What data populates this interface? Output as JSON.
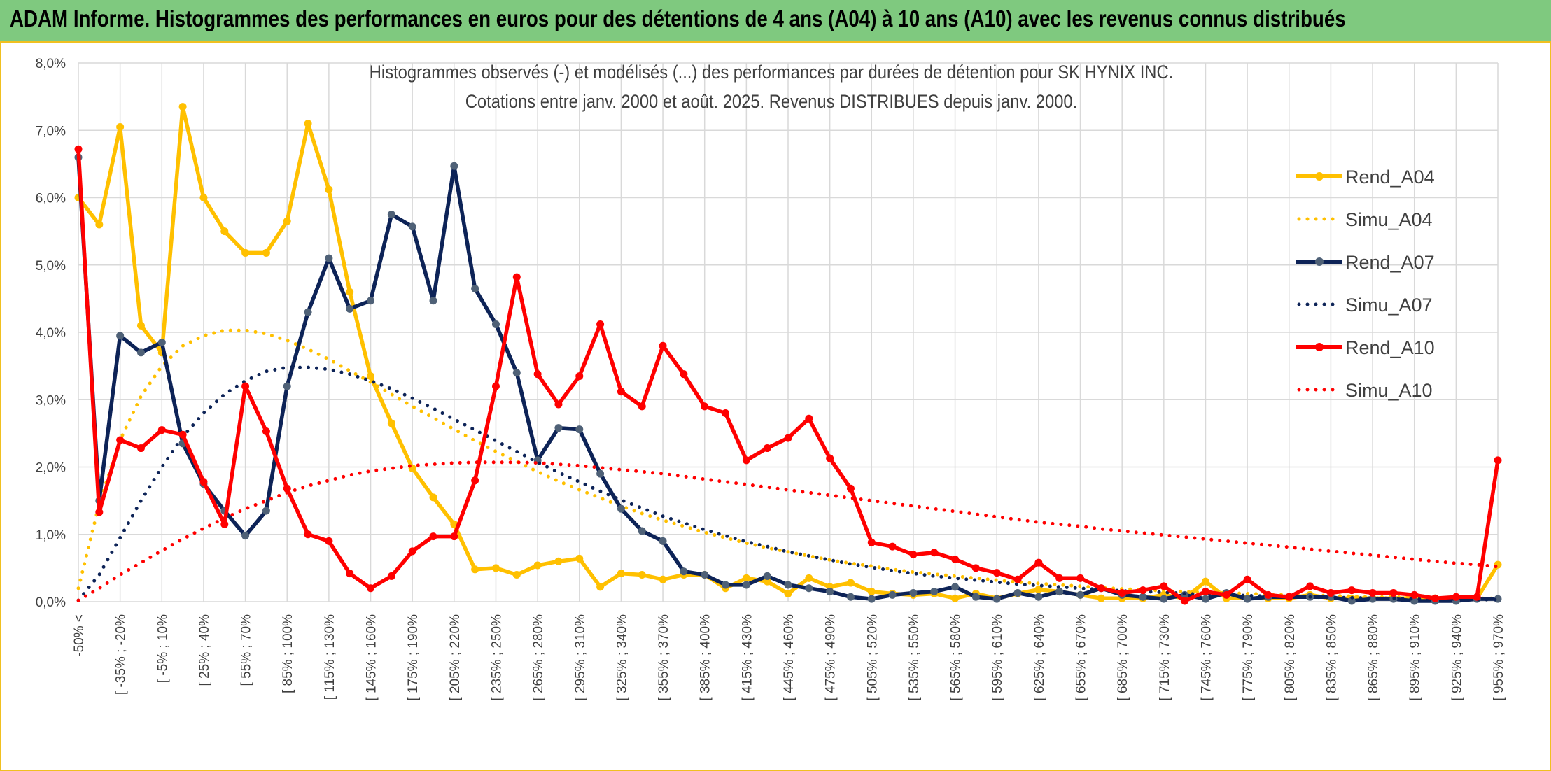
{
  "banner": {
    "title": "ADAM Informe. Histogrammes des performances en euros pour des détentions de 4 ans (A04) à 10 ans (A10) avec les revenus connus distribués"
  },
  "colors": {
    "banner_bg": "#7fc97f",
    "banner_border": "#f0c020",
    "A04": "#ffc000",
    "A07": "#0d2357",
    "A10": "#ff0000",
    "grid": "#d9d9d9"
  },
  "chart_data": {
    "type": "line",
    "title": "Histogrammes observés (-) et modélisés (...) des performances par durées de détention pour SK HYNIX INC.",
    "subtitle": "Cotations entre janv. 2000 et août. 2025. Revenus DISTRIBUES depuis janv. 2000.",
    "xlabel": "",
    "ylabel": "",
    "ylim": [
      0,
      8
    ],
    "y_unit": "%",
    "y_ticks": [
      "0,0%",
      "1,0%",
      "2,0%",
      "3,0%",
      "4,0%",
      "5,0%",
      "6,0%",
      "7,0%",
      "8,0%"
    ],
    "grid": true,
    "legend_position": "top-right",
    "x_tick_labels": [
      "-50% <",
      "[ -35% ; -20%",
      "[ -5% ; 10%",
      "[ 25% ; 40%",
      "[ 55% ; 70%",
      "[ 85% ; 100%",
      "[ 115% ; 130%",
      "[ 145% ; 160%",
      "[ 175% ; 190%",
      "[ 205% ; 220%",
      "[ 235% ; 250%",
      "[ 265% ; 280%",
      "[ 295% ; 310%",
      "[ 325% ; 340%",
      "[ 355% ; 370%",
      "[ 385% ; 400%",
      "[ 415% ; 430%",
      "[ 445% ; 460%",
      "[ 475% ; 490%",
      "[ 505% ; 520%",
      "[ 535% ; 550%",
      "[ 565% ; 580%",
      "[ 595% ; 610%",
      "[ 625% ; 640%",
      "[ 655% ; 670%",
      "[ 685% ; 700%",
      "[ 715% ; 730%",
      "[ 745% ; 760%",
      "[ 775% ; 790%",
      "[ 805% ; 820%",
      "[ 835% ; 850%",
      "[ 865% ; 880%",
      "[ 895% ; 910%",
      "[ 925% ; 940%",
      "[ 955% ; 970%"
    ],
    "n_categories": 69,
    "series": [
      {
        "name": "Rend_A04",
        "style": "solid",
        "color": "#ffc000",
        "values": [
          6.0,
          5.6,
          7.05,
          4.1,
          3.7,
          7.35,
          6.0,
          5.5,
          5.18,
          5.18,
          5.65,
          7.1,
          6.12,
          4.6,
          3.35,
          2.65,
          1.98,
          1.55,
          1.15,
          0.48,
          0.5,
          0.4,
          0.54,
          0.6,
          0.64,
          0.22,
          0.42,
          0.4,
          0.33,
          0.4,
          0.4,
          0.2,
          0.35,
          0.3,
          0.12,
          0.35,
          0.22,
          0.28,
          0.15,
          0.12,
          0.1,
          0.12,
          0.05,
          0.12,
          0.05,
          0.12,
          0.18,
          0.15,
          0.1,
          0.05,
          0.05,
          0.05,
          0.1,
          0.05,
          0.3,
          0.05,
          0.05,
          0.05,
          0.05,
          0.1,
          0.05,
          0.05,
          0.05,
          0.05,
          0.05,
          0.05,
          0.05,
          0.05,
          0.55
        ]
      },
      {
        "name": "Simu_A04",
        "style": "dotted",
        "color": "#ffc000",
        "values": [
          0.2,
          1.45,
          2.4,
          3.05,
          3.5,
          3.8,
          3.95,
          4.03,
          4.03,
          3.98,
          3.88,
          3.75,
          3.6,
          3.43,
          3.26,
          3.08,
          2.9,
          2.73,
          2.56,
          2.39,
          2.23,
          2.08,
          1.93,
          1.79,
          1.66,
          1.54,
          1.42,
          1.31,
          1.21,
          1.12,
          1.03,
          0.95,
          0.87,
          0.8,
          0.74,
          0.68,
          0.62,
          0.57,
          0.53,
          0.48,
          0.44,
          0.41,
          0.38,
          0.35,
          0.32,
          0.29,
          0.27,
          0.25,
          0.23,
          0.21,
          0.19,
          0.18,
          0.16,
          0.15,
          0.14,
          0.13,
          0.12,
          0.11,
          0.1,
          0.09,
          0.09,
          0.08,
          0.07,
          0.07,
          0.06,
          0.06,
          0.05,
          0.05,
          0.05
        ]
      },
      {
        "name": "Rend_A07",
        "style": "solid",
        "color": "#0d2357",
        "values": [
          6.6,
          1.5,
          3.95,
          3.7,
          3.85,
          2.35,
          1.75,
          1.35,
          0.98,
          1.35,
          3.2,
          4.3,
          5.1,
          4.35,
          4.47,
          5.75,
          5.57,
          4.47,
          6.47,
          4.65,
          4.12,
          3.4,
          2.1,
          2.58,
          2.56,
          1.9,
          1.38,
          1.05,
          0.9,
          0.45,
          0.4,
          0.25,
          0.25,
          0.38,
          0.25,
          0.2,
          0.15,
          0.07,
          0.04,
          0.1,
          0.13,
          0.15,
          0.22,
          0.07,
          0.04,
          0.13,
          0.07,
          0.15,
          0.1,
          0.2,
          0.1,
          0.07,
          0.04,
          0.1,
          0.04,
          0.13,
          0.04,
          0.07,
          0.07,
          0.07,
          0.07,
          0.01,
          0.04,
          0.04,
          0.01,
          0.01,
          0.01,
          0.04,
          0.04
        ]
      },
      {
        "name": "Simu_A07",
        "style": "dotted",
        "color": "#0d2357",
        "values": [
          0.02,
          0.4,
          0.95,
          1.5,
          2.0,
          2.45,
          2.8,
          3.08,
          3.28,
          3.42,
          3.48,
          3.48,
          3.45,
          3.38,
          3.28,
          3.16,
          3.02,
          2.87,
          2.71,
          2.55,
          2.39,
          2.23,
          2.07,
          1.92,
          1.78,
          1.64,
          1.51,
          1.39,
          1.27,
          1.17,
          1.07,
          0.98,
          0.89,
          0.82,
          0.74,
          0.68,
          0.62,
          0.56,
          0.51,
          0.46,
          0.42,
          0.38,
          0.35,
          0.32,
          0.29,
          0.26,
          0.24,
          0.22,
          0.2,
          0.18,
          0.16,
          0.15,
          0.14,
          0.12,
          0.11,
          0.1,
          0.09,
          0.08,
          0.08,
          0.07,
          0.06,
          0.06,
          0.05,
          0.05,
          0.04,
          0.04,
          0.04,
          0.03,
          0.03
        ]
      },
      {
        "name": "Rend_A10",
        "style": "solid",
        "color": "#ff0000",
        "values": [
          6.72,
          1.33,
          2.4,
          2.28,
          2.55,
          2.48,
          1.78,
          1.15,
          3.2,
          2.53,
          1.68,
          1.0,
          0.9,
          0.42,
          0.2,
          0.38,
          0.75,
          0.97,
          0.97,
          1.8,
          3.2,
          4.82,
          3.38,
          2.93,
          3.35,
          4.12,
          3.12,
          2.9,
          3.8,
          3.38,
          2.9,
          2.8,
          2.1,
          2.28,
          2.43,
          2.72,
          2.13,
          1.68,
          0.88,
          0.82,
          0.7,
          0.73,
          0.63,
          0.5,
          0.43,
          0.33,
          0.58,
          0.35,
          0.35,
          0.2,
          0.13,
          0.17,
          0.23,
          0.01,
          0.15,
          0.1,
          0.33,
          0.1,
          0.07,
          0.23,
          0.13,
          0.17,
          0.13,
          0.13,
          0.1,
          0.05,
          0.07,
          0.07,
          2.1
        ]
      },
      {
        "name": "Simu_A10",
        "style": "dotted",
        "color": "#ff0000",
        "values": [
          0.02,
          0.2,
          0.4,
          0.58,
          0.76,
          0.93,
          1.09,
          1.24,
          1.38,
          1.5,
          1.62,
          1.72,
          1.8,
          1.88,
          1.94,
          1.98,
          2.02,
          2.04,
          2.06,
          2.07,
          2.07,
          2.07,
          2.06,
          2.04,
          2.02,
          1.99,
          1.96,
          1.93,
          1.9,
          1.86,
          1.82,
          1.78,
          1.74,
          1.7,
          1.66,
          1.62,
          1.58,
          1.54,
          1.5,
          1.46,
          1.42,
          1.38,
          1.34,
          1.3,
          1.26,
          1.22,
          1.18,
          1.15,
          1.12,
          1.08,
          1.05,
          1.02,
          0.99,
          0.96,
          0.93,
          0.9,
          0.87,
          0.84,
          0.81,
          0.78,
          0.75,
          0.72,
          0.69,
          0.66,
          0.63,
          0.6,
          0.57,
          0.55,
          0.52
        ]
      }
    ]
  }
}
